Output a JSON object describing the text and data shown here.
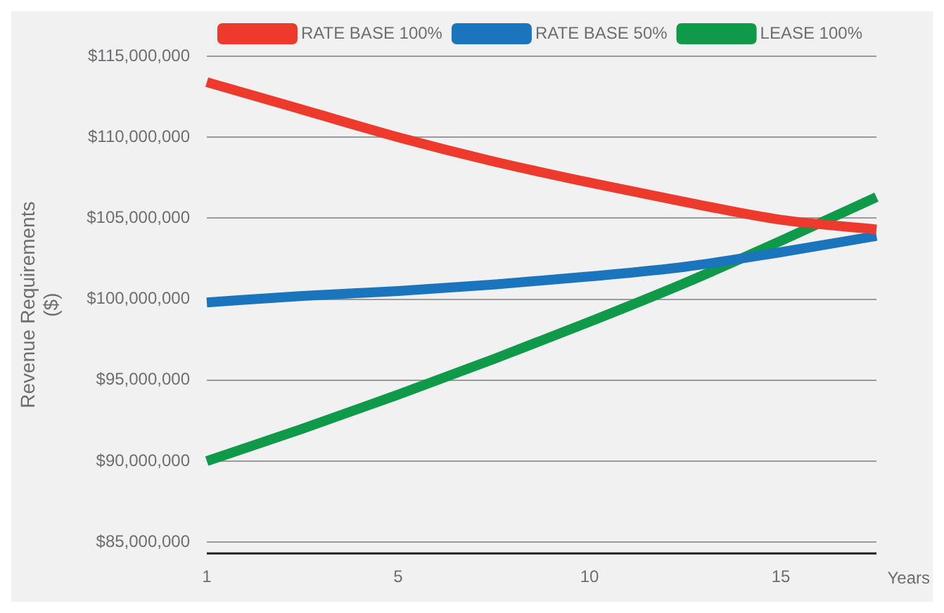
{
  "chart_data": {
    "type": "line",
    "xlabel": "Years",
    "ylabel": "Revenue Requirements\n($)",
    "categories": [
      "1",
      null,
      "5",
      null,
      "10",
      null,
      "15",
      null
    ],
    "series": [
      {
        "name": "RATE BASE 100%",
        "color": "#ee3a2c",
        "values": [
          113400000,
          111700000,
          110000000,
          108500000,
          107200000,
          106000000,
          104900000,
          104300000
        ]
      },
      {
        "name": "RATE BASE 50%",
        "color": "#1a75bc",
        "values": [
          99800000,
          100200000,
          100500000,
          100900000,
          101400000,
          102000000,
          102900000,
          103900000
        ]
      },
      {
        "name": "LEASE 100%",
        "color": "#0f9a4a",
        "values": [
          90000000,
          92000000,
          94100000,
          96300000,
          98600000,
          101000000,
          103600000,
          106300000
        ]
      }
    ],
    "ylim": [
      84300000,
      115000000
    ],
    "yticks": [
      {
        "value": 85000000,
        "label": "$85,000,000"
      },
      {
        "value": 90000000,
        "label": "$90,000,000"
      },
      {
        "value": 95000000,
        "label": "$95,000,000"
      },
      {
        "value": 100000000,
        "label": "$100,000,000"
      },
      {
        "value": 105000000,
        "label": "$105,000,000"
      },
      {
        "value": 110000000,
        "label": "$110,000,000"
      },
      {
        "value": 115000000,
        "label": "$115,000,000"
      }
    ],
    "grid": "y",
    "legend": "top right",
    "marker": "none",
    "line_style": "solid"
  }
}
